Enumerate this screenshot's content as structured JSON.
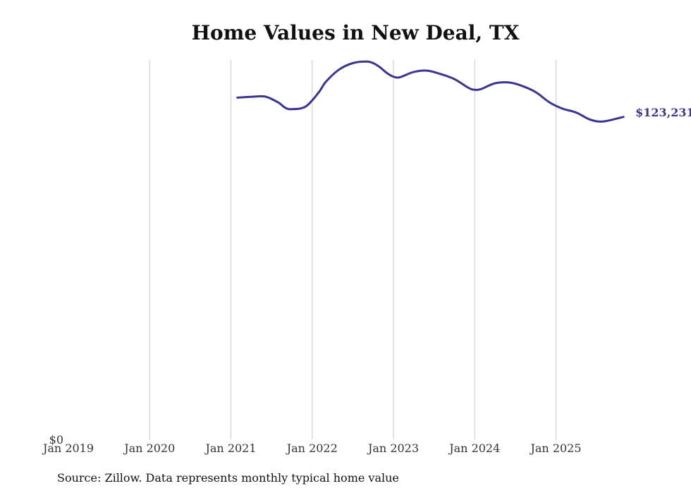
{
  "chart_data": {
    "type": "line",
    "title": "Home Values in New Deal, TX",
    "xlabel": "",
    "ylabel": "",
    "x_ticks": [
      "Jan 2019",
      "Jan 2020",
      "Jan 2021",
      "Jan 2022",
      "Jan 2023",
      "Jan 2024",
      "Jan 2025"
    ],
    "y_ticks": [
      "$0"
    ],
    "ylim": [
      0,
      145000
    ],
    "xlim": [
      2019.0,
      2025.95
    ],
    "grid": "vertical",
    "series": [
      {
        "name": "Typical home value",
        "color": "#3a3590",
        "end_label": "$123,231",
        "x": [
          2021.08,
          2021.25,
          2021.42,
          2021.58,
          2021.67,
          2021.75,
          2021.92,
          2022.08,
          2022.17,
          2022.33,
          2022.5,
          2022.67,
          2022.75,
          2022.83,
          2022.92,
          2023.0,
          2023.08,
          2023.25,
          2023.42,
          2023.58,
          2023.75,
          2023.92,
          2024.0,
          2024.08,
          2024.25,
          2024.42,
          2024.58,
          2024.75,
          2024.92,
          2025.08,
          2025.25,
          2025.42,
          2025.58,
          2025.83
        ],
        "values": [
          130600,
          130900,
          131000,
          128800,
          126700,
          126200,
          127200,
          132600,
          136700,
          141300,
          143800,
          144400,
          143800,
          142300,
          140000,
          138600,
          138400,
          140400,
          140900,
          139600,
          137700,
          134400,
          133600,
          133900,
          136100,
          136400,
          135100,
          132700,
          128800,
          126400,
          124900,
          122200,
          121500,
          123231
        ]
      }
    ]
  },
  "footer": {
    "source": "Source: Zillow. Data represents monthly typical home value"
  }
}
